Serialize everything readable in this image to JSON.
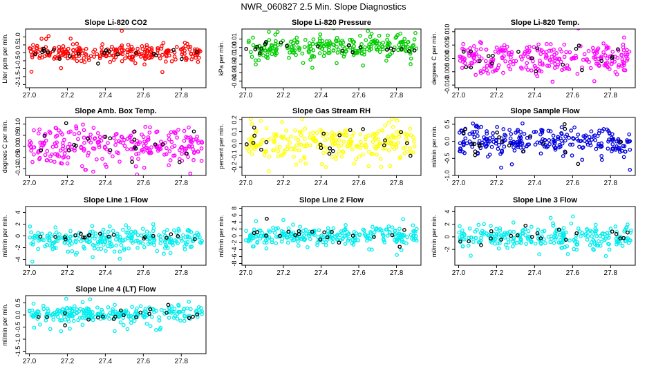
{
  "title": "NWR_060827  2.5 Min. Slope Diagnostics",
  "chart_data": [
    {
      "type": "scatter",
      "title": "Slope Li-820 CO2",
      "ylabel": "Liter ppm per min.",
      "xlim": [
        26.98,
        27.93
      ],
      "ylim": [
        -2.2,
        1.5
      ],
      "xticks": [
        27.0,
        27.2,
        27.4,
        27.6,
        27.8
      ],
      "yticks": [
        -2,
        -1.5,
        -1,
        -0.5,
        0,
        0.5,
        1
      ],
      "yticklabels": [
        "-2",
        "-1.5",
        "-1",
        "-0.5",
        "0",
        "0.5",
        "1.0"
      ],
      "series": [
        {
          "color": "#ff0000",
          "center": 0.0,
          "spread": 0.25,
          "outlier_spread": 1.0,
          "count": 260
        },
        {
          "color": "#000000",
          "center": 0.0,
          "spread": 0.2,
          "count": 20
        }
      ]
    },
    {
      "type": "scatter",
      "title": "Slope Li-820 Pressure",
      "ylabel": "kPa per min.",
      "xlim": [
        26.98,
        27.93
      ],
      "ylim": [
        -0.048,
        0.022
      ],
      "xticks": [
        27.0,
        27.2,
        27.4,
        27.6,
        27.8
      ],
      "yticks": [
        -0.04,
        -0.03,
        -0.02,
        -0.01,
        0.0,
        0.01
      ],
      "yticklabels": [
        "-0.04",
        "-0.03",
        "-0.02",
        "-0.01",
        "0.00",
        "0.01"
      ],
      "series": [
        {
          "color": "#00cc00",
          "center": 0.0,
          "spread": 0.006,
          "outlier_spread": 0.02,
          "count": 260
        },
        {
          "color": "#000000",
          "center": 0.0,
          "spread": 0.005,
          "count": 20
        }
      ]
    },
    {
      "type": "scatter",
      "title": "Slope Li-820 Temp.",
      "ylabel": "degrees C per min.",
      "xlim": [
        26.98,
        27.93
      ],
      "ylim": [
        -0.011,
        0.011
      ],
      "xticks": [
        27.0,
        27.2,
        27.4,
        27.6,
        27.8
      ],
      "yticks": [
        -0.01,
        -0.005,
        0.0,
        0.005,
        0.01
      ],
      "yticklabels": [
        "-0.010",
        "-0.005",
        "0.000",
        "0.005",
        "0.010"
      ],
      "series": [
        {
          "color": "#ff00ff",
          "center": 0.0,
          "spread": 0.003,
          "outlier_spread": 0.008,
          "count": 260
        },
        {
          "color": "#000000",
          "center": 0.0,
          "spread": 0.003,
          "count": 20
        }
      ]
    },
    {
      "type": "scatter",
      "title": "Slope Amb. Box Temp.",
      "ylabel": "degrees C per min.",
      "xlim": [
        26.98,
        27.93
      ],
      "ylim": [
        -0.13,
        0.13
      ],
      "xticks": [
        27.0,
        27.2,
        27.4,
        27.6,
        27.8
      ],
      "yticks": [
        -0.1,
        -0.05,
        0.0,
        0.05,
        0.1
      ],
      "yticklabels": [
        "-0.10",
        "-0.05",
        "0.00",
        "0.05",
        "0.10"
      ],
      "series": [
        {
          "color": "#ff00ff",
          "center": 0.0,
          "spread": 0.04,
          "outlier_spread": 0.1,
          "count": 260
        },
        {
          "color": "#000000",
          "center": 0.0,
          "spread": 0.04,
          "count": 20
        }
      ]
    },
    {
      "type": "scatter",
      "title": "Slope Gas Stream RH",
      "ylabel": "percent per min.",
      "xlim": [
        26.98,
        27.93
      ],
      "ylim": [
        -0.27,
        0.22
      ],
      "xticks": [
        27.0,
        27.2,
        27.4,
        27.6,
        27.8
      ],
      "yticks": [
        -0.2,
        -0.1,
        0.0,
        0.1,
        0.2
      ],
      "yticklabels": [
        "-0.2",
        "-0.1",
        "0.0",
        "0.1",
        "0.2"
      ],
      "series": [
        {
          "color": "#ffff00",
          "center": 0.0,
          "spread": 0.08,
          "outlier_spread": 0.15,
          "count": 260
        },
        {
          "color": "#000000",
          "center": 0.0,
          "spread": 0.07,
          "count": 20
        }
      ]
    },
    {
      "type": "scatter",
      "title": "Slope Sample Flow",
      "ylabel": "ml/min per min.",
      "xlim": [
        26.98,
        27.93
      ],
      "ylim": [
        -1.0,
        0.7
      ],
      "xticks": [
        27.0,
        27.2,
        27.4,
        27.6,
        27.8
      ],
      "yticks": [
        -1.0,
        -0.5,
        0.0,
        0.5
      ],
      "yticklabels": [
        "-1.0",
        "-0.5",
        "0.0",
        "0.5"
      ],
      "series": [
        {
          "color": "#0000dd",
          "center": 0.0,
          "spread": 0.2,
          "outlier_spread": 0.6,
          "count": 260
        },
        {
          "color": "#000000",
          "center": 0.0,
          "spread": 0.2,
          "count": 20
        }
      ]
    },
    {
      "type": "scatter",
      "title": "Slope Line 1 Flow",
      "ylabel": "ml/min per min.",
      "xlim": [
        26.98,
        27.93
      ],
      "ylim": [
        -5.0,
        5.0
      ],
      "xticks": [
        27.0,
        27.2,
        27.4,
        27.6,
        27.8
      ],
      "yticks": [
        -4,
        -2,
        0,
        2,
        4
      ],
      "yticklabels": [
        "-4",
        "-2",
        "0",
        "2",
        "4"
      ],
      "series": [
        {
          "color": "#00eeee",
          "center": -0.5,
          "spread": 1.0,
          "outlier_spread": 3.0,
          "count": 260
        },
        {
          "color": "#000000",
          "center": 0.0,
          "spread": 0.4,
          "count": 20
        }
      ]
    },
    {
      "type": "scatter",
      "title": "Slope Line 2 Flow",
      "ylabel": "ml/min per min.",
      "xlim": [
        26.98,
        27.93
      ],
      "ylim": [
        -8.5,
        8.5
      ],
      "xticks": [
        27.0,
        27.2,
        27.4,
        27.6,
        27.8
      ],
      "yticks": [
        -8,
        -6,
        -4,
        -2,
        0,
        2,
        4,
        6,
        8
      ],
      "yticklabels": [
        "-8",
        "-6",
        "-4",
        "-2",
        "0",
        "2",
        "4",
        "6",
        "8"
      ],
      "series": [
        {
          "color": "#00eeee",
          "center": 0.0,
          "spread": 1.2,
          "outlier_spread": 5.0,
          "count": 260
        },
        {
          "color": "#000000",
          "center": 0.0,
          "spread": 1.5,
          "count": 20
        }
      ]
    },
    {
      "type": "scatter",
      "title": "Slope Line 3 Flow",
      "ylabel": "ml/min per min.",
      "xlim": [
        26.98,
        27.93
      ],
      "ylim": [
        -4.5,
        4.8
      ],
      "xticks": [
        27.0,
        27.2,
        27.4,
        27.6,
        27.8
      ],
      "yticks": [
        -2,
        0,
        2,
        4
      ],
      "yticklabels": [
        "-2",
        "0",
        "2",
        "4"
      ],
      "series": [
        {
          "color": "#00eeee",
          "center": 0.0,
          "spread": 0.9,
          "outlier_spread": 3.0,
          "count": 260
        },
        {
          "color": "#000000",
          "center": 0.0,
          "spread": 1.0,
          "count": 20
        }
      ]
    },
    {
      "type": "scatter",
      "title": "Slope Line 4 (LT) Flow",
      "ylabel": "ml/min per min.",
      "xlim": [
        26.98,
        27.93
      ],
      "ylim": [
        -1.6,
        0.8
      ],
      "xticks": [
        27.0,
        27.2,
        27.4,
        27.6,
        27.8
      ],
      "yticks": [
        -1.5,
        -1.0,
        -0.5,
        0.0,
        0.5
      ],
      "yticklabels": [
        "-1.5",
        "-1.0",
        "-0.5",
        "0.0",
        "0.5"
      ],
      "series": [
        {
          "color": "#00eeee",
          "center": 0.05,
          "spread": 0.15,
          "outlier_spread": 0.8,
          "count": 260
        },
        {
          "color": "#000000",
          "center": 0.0,
          "spread": 0.15,
          "count": 20
        }
      ]
    }
  ]
}
